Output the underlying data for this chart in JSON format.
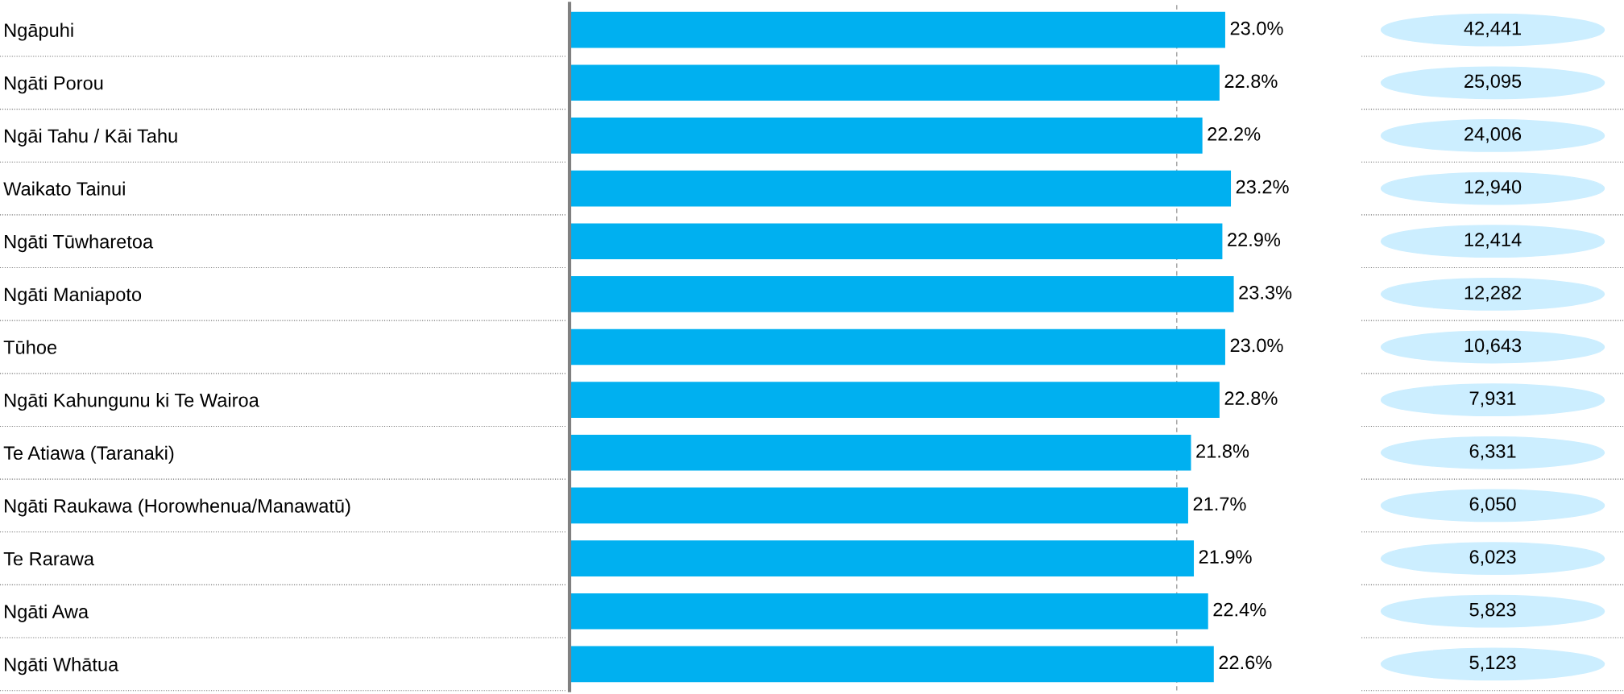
{
  "chart_data": {
    "type": "bar",
    "orientation": "horizontal",
    "categories": [
      "Ngāpuhi",
      "Ngāti Porou",
      "Ngāi Tahu / Kāi Tahu",
      "Waikato Tainui",
      "Ngāti Tūwharetoa",
      "Ngāti Maniapoto",
      "Tūhoe",
      "Ngāti Kahungunu ki Te Wairoa",
      "Te Atiawa (Taranaki)",
      "Ngāti Raukawa (Horowhenua/Manawatū)",
      "Te Rarawa",
      "Ngāti Awa",
      "Ngāti Whātua"
    ],
    "values": [
      23.0,
      22.8,
      22.2,
      23.2,
      22.9,
      23.3,
      23.0,
      22.8,
      21.8,
      21.7,
      21.9,
      22.4,
      22.6
    ],
    "value_labels": [
      "23.0%",
      "22.8%",
      "22.2%",
      "23.2%",
      "22.9%",
      "23.3%",
      "23.0%",
      "22.8%",
      "21.8%",
      "21.7%",
      "21.9%",
      "22.4%",
      "22.6%"
    ],
    "color": "#00b0f0",
    "ref_lines": [
      {
        "axis": "x",
        "value": 21.3,
        "color": "#a0a0a0",
        "line_style": "dashed"
      }
    ],
    "annotations": [
      "42,441",
      "25,095",
      "24,006",
      "12,940",
      "12,414",
      "12,282",
      "10,643",
      "7,931",
      "6,331",
      "6,050",
      "6,023",
      "5,823",
      "5,123"
    ],
    "grid": false,
    "legend": false
  }
}
